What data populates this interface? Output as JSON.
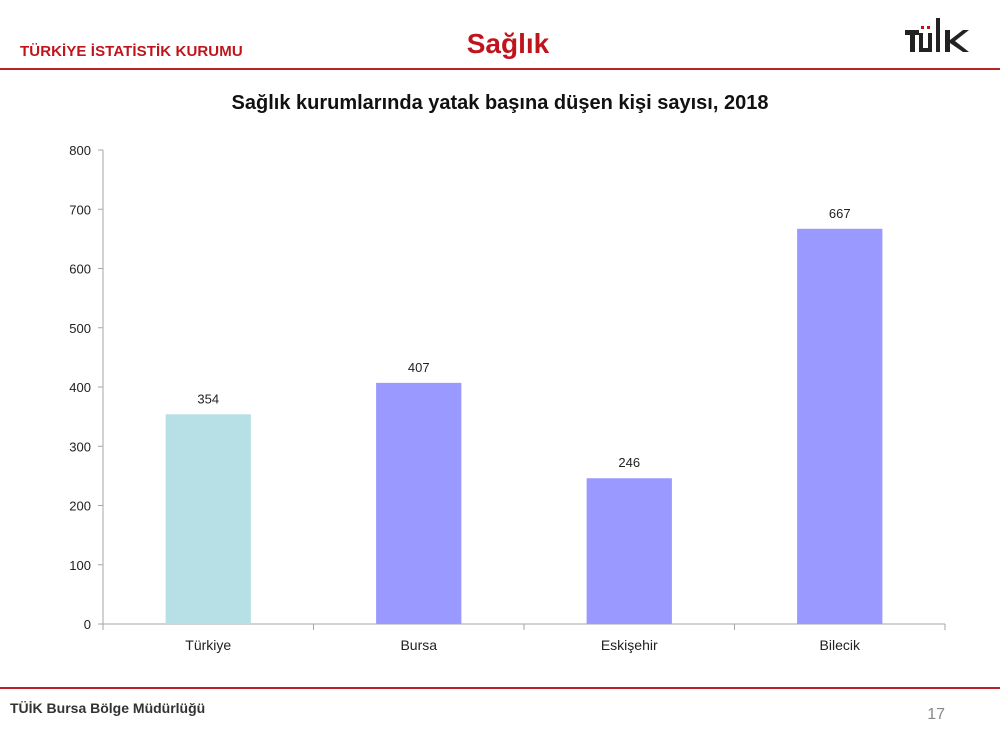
{
  "header": {
    "org_name": "TÜRKİYE İSTATİSTİK KURUMU",
    "page_title": "Sağlık",
    "logo_text": "TÜİK",
    "accent_color": "#c0141c"
  },
  "chart_data": {
    "type": "bar",
    "title": "Sağlık kurumlarında yatak başına düşen kişi sayısı, 2018",
    "categories": [
      "Türkiye",
      "Bursa",
      "Eskişehir",
      "Bilecik"
    ],
    "values": [
      354,
      407,
      246,
      667
    ],
    "data_labels": [
      "354",
      "407",
      "246",
      "667"
    ],
    "bar_colors": [
      "#b7dfe6",
      "#9999ff",
      "#9999ff",
      "#9999ff"
    ],
    "ylim": [
      0,
      800
    ],
    "yticks": [
      "0",
      "100",
      "200",
      "300",
      "400",
      "500",
      "600",
      "700",
      "800"
    ],
    "xlabel": "",
    "ylabel": "",
    "grid": false,
    "legend": "none"
  },
  "footer": {
    "office": "TÜİK Bursa Bölge Müdürlüğü",
    "page_number": "17"
  }
}
